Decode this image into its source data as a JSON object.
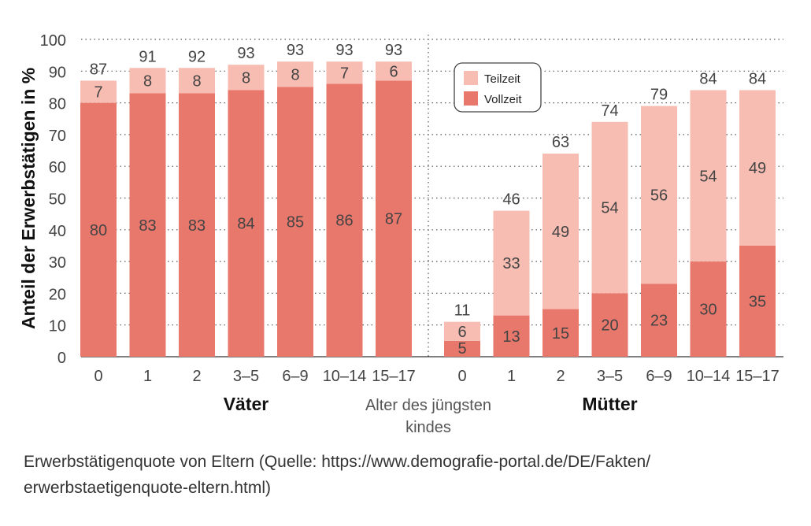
{
  "chart_data": {
    "type": "bar",
    "stacked": true,
    "ylabel": "Anteil der Erwerbstätigen in %",
    "xlabel": "Alter des jüngsten kindes",
    "xlabel_line1": "Alter des jüngsten",
    "xlabel_line2": "kindes",
    "ylim": [
      0,
      100
    ],
    "yticks": [
      "0",
      "10",
      "20",
      "30",
      "40",
      "50",
      "60",
      "70",
      "80",
      "90",
      "100"
    ],
    "legend": {
      "placement": "top-right of Mütter group",
      "teilzeit": "Teilzeit",
      "vollzeit": "Vollzeit"
    },
    "colors": {
      "vollzeit": "#E8776C",
      "teilzeit": "#F7BDB2",
      "grid": "#555555",
      "text": "#444444"
    },
    "groups": [
      {
        "name": "Väter",
        "categories": [
          "0",
          "1",
          "2",
          "3–5",
          "6–9",
          "10–14",
          "15–17"
        ],
        "vollzeit": [
          80,
          83,
          83,
          84,
          85,
          86,
          87
        ],
        "teilzeit": [
          7,
          8,
          8,
          8,
          8,
          7,
          6
        ],
        "totals": [
          87,
          91,
          92,
          93,
          93,
          93,
          93
        ]
      },
      {
        "name": "Mütter",
        "categories": [
          "0",
          "1",
          "2",
          "3–5",
          "6–9",
          "10–14",
          "15–17"
        ],
        "vollzeit": [
          5,
          13,
          15,
          20,
          23,
          30,
          35
        ],
        "teilzeit": [
          6,
          33,
          49,
          54,
          56,
          54,
          49
        ],
        "totals": [
          11,
          46,
          63,
          74,
          79,
          84,
          84
        ]
      }
    ]
  },
  "caption": {
    "line1": "Erwerbstätigenquote von Eltern (Quelle: https://www.demografie-portal.de/DE/Fakten/",
    "line2": "erwerbstaetigenquote-eltern.html)"
  }
}
